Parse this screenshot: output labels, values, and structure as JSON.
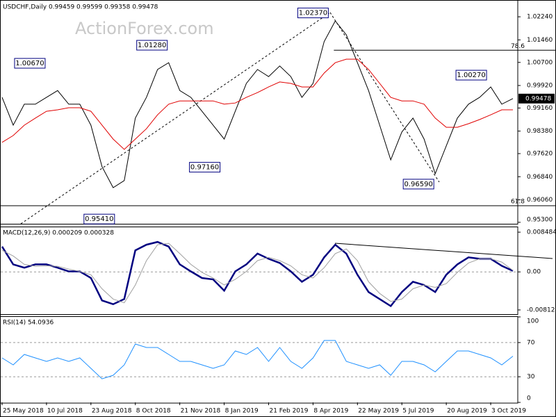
{
  "chart_data": [
    {
      "type": "price",
      "title": "USDCHF,Daily  0.99459 0.99599 0.99358 0.99478",
      "watermark": "ActionForex.com",
      "x": [
        0,
        8,
        16,
        24,
        32,
        40,
        48,
        56,
        64,
        72,
        80,
        88,
        96,
        104,
        112,
        120,
        128,
        136,
        144,
        152,
        160,
        168,
        176,
        184,
        192,
        200,
        208,
        216,
        224,
        232,
        240,
        248,
        256,
        264,
        272,
        280,
        288,
        296,
        304,
        312,
        320,
        328,
        336,
        344,
        352,
        360,
        368
      ],
      "xlim": [
        -1,
        371.5
      ],
      "ylim": [
        0.9525,
        1.0276
      ],
      "yticks": [
        {
          "value": 1.0224,
          "label": "1.02240"
        },
        {
          "value": 1.0146,
          "label": "1.01460"
        },
        {
          "value": 1.007,
          "label": "1.00700"
        },
        {
          "value": 0.9992,
          "label": "0.99920"
        },
        {
          "value": 0.9916,
          "label": "0.99160"
        },
        {
          "value": 0.9838,
          "label": "0.98380"
        },
        {
          "value": 0.9762,
          "label": "0.97620"
        },
        {
          "value": 0.9684,
          "label": "0.96840"
        },
        {
          "value": 0.9606,
          "label": "0.96060"
        },
        {
          "value": 0.953,
          "label": "0.95300"
        }
      ],
      "series": [
        {
          "name": "Close",
          "color": "#000000",
          "values": [
            0.9952,
            0.9858,
            0.9929,
            0.9929,
            0.9952,
            0.9975,
            0.9929,
            0.9929,
            0.9858,
            0.9718,
            0.9647,
            0.9671,
            0.9882,
            0.9952,
            1.0046,
            1.0069,
            0.9975,
            0.9952,
            0.9905,
            0.9858,
            0.9811,
            0.9905,
            0.9999,
            1.0046,
            1.0022,
            1.0058,
            1.0022,
            0.9952,
            0.9999,
            1.014,
            1.021,
            1.0163,
            1.0069,
            0.9975,
            0.9858,
            0.9741,
            0.9835,
            0.9882,
            0.9811,
            0.9694,
            0.9788,
            0.9882,
            0.9929,
            0.9952,
            0.9987,
            0.9929,
            0.99478
          ]
        },
        {
          "name": "MA",
          "color": "#e00000",
          "values": [
            0.98,
            0.9823,
            0.9858,
            0.9882,
            0.9905,
            0.991,
            0.9917,
            0.9917,
            0.9905,
            0.9858,
            0.9811,
            0.9776,
            0.9811,
            0.9846,
            0.9893,
            0.9929,
            0.994,
            0.994,
            0.994,
            0.994,
            0.9929,
            0.9933,
            0.9952,
            0.9968,
            0.9987,
            1.0004,
            0.9999,
            0.9987,
            0.9987,
            1.0034,
            1.0069,
            1.0081,
            1.0081,
            1.0046,
            0.9999,
            0.9952,
            0.994,
            0.994,
            0.9929,
            0.9882,
            0.9851,
            0.9851,
            0.9863,
            0.9877,
            0.9893,
            0.991,
            0.991
          ]
        }
      ],
      "annotations": [
        {
          "label": "1.00670",
          "value": 1.0067,
          "x": 20
        },
        {
          "label": "1.01280",
          "value": 1.0128,
          "x": 108
        },
        {
          "label": "0.95410",
          "value": 0.9541,
          "x": 70
        },
        {
          "label": "0.97160",
          "value": 0.9716,
          "x": 146
        },
        {
          "label": "1.02370",
          "value": 1.0237,
          "x": 224
        },
        {
          "label": "0.96590",
          "value": 0.9659,
          "x": 300
        },
        {
          "label": "1.00270",
          "value": 1.0027,
          "x": 338
        }
      ],
      "levels": [
        {
          "label": "78.6",
          "value": 1.0111,
          "from": 239
        },
        {
          "label": "61.8",
          "value": 0.9586,
          "from": -1
        }
      ],
      "last": {
        "value": 0.99478,
        "label": "0.99478"
      }
    },
    {
      "type": "macd",
      "title": "MACD(12,26,9) 0.000209 0.000328",
      "x": [
        0,
        8,
        16,
        24,
        32,
        40,
        48,
        56,
        64,
        72,
        80,
        88,
        96,
        104,
        112,
        120,
        128,
        136,
        144,
        152,
        160,
        168,
        176,
        184,
        192,
        200,
        208,
        216,
        224,
        232,
        240,
        248,
        256,
        264,
        272,
        280,
        288,
        296,
        304,
        312,
        320,
        328,
        336,
        344,
        352,
        360,
        368
      ],
      "xlim": [
        -1,
        371.5
      ],
      "ylim": [
        -0.009021,
        0.009531
      ],
      "yticks": [
        0.008484,
        {
          "value": 0,
          "label": "0.00"
        },
        -0.008123
      ],
      "reference_lines": [
        0
      ],
      "series": [
        {
          "name": "MACD",
          "color": "#000080",
          "values": [
            0.0054,
            0.0016,
            0.0009,
            0.0016,
            0.0016,
            0.0009,
            0.0001,
            0.0001,
            -0.0013,
            -0.0061,
            -0.0069,
            -0.0058,
            0.0046,
            0.0058,
            0.0064,
            0.0054,
            0.0016,
            0.0001,
            -0.0013,
            -0.0016,
            -0.004,
            0.0001,
            0.0016,
            0.0039,
            0.0028,
            0.0019,
            0.0001,
            -0.0021,
            -0.0006,
            0.0031,
            0.0058,
            0.0039,
            -0.0006,
            -0.0043,
            -0.0058,
            -0.0073,
            -0.0043,
            -0.0021,
            -0.0028,
            -0.0043,
            -0.0006,
            0.0016,
            0.0031,
            0.0028,
            0.0028,
            0.0013,
            0.000209
          ]
        },
        {
          "name": "Signal",
          "color": "#a0a0a0",
          "values": [
            0.0046,
            0.0034,
            0.0016,
            0.0012,
            0.0013,
            0.0012,
            0.0006,
            0.0001,
            -0.0006,
            -0.0036,
            -0.0058,
            -0.0066,
            -0.0028,
            0.0024,
            0.0058,
            0.0061,
            0.0039,
            0.0016,
            -0.0001,
            -0.0013,
            -0.0028,
            -0.0016,
            0.0001,
            0.0024,
            0.0031,
            0.0024,
            0.0013,
            -0.0006,
            -0.0013,
            0.0009,
            0.0039,
            0.0049,
            0.0024,
            -0.0021,
            -0.0046,
            -0.0063,
            -0.0058,
            -0.0036,
            -0.0028,
            -0.0033,
            -0.0025,
            -0.0001,
            0.0019,
            0.0028,
            0.0028,
            0.0021,
            0.000328
          ]
        }
      ]
    },
    {
      "type": "rsi",
      "title": "RSI(14) 54.0936",
      "x": [
        0,
        8,
        16,
        24,
        32,
        40,
        48,
        56,
        64,
        72,
        80,
        88,
        96,
        104,
        112,
        120,
        128,
        136,
        144,
        152,
        160,
        168,
        176,
        184,
        192,
        200,
        208,
        216,
        224,
        232,
        240,
        248,
        256,
        264,
        272,
        280,
        288,
        296,
        304,
        312,
        320,
        328,
        336,
        344,
        352,
        360,
        368
      ],
      "xlim": [
        -1,
        371.5
      ],
      "ylim": [
        0,
        100
      ],
      "yticks": [
        100,
        70,
        30,
        0
      ],
      "reference_lines": [
        70,
        30
      ],
      "xticks": [
        {
          "value": 0,
          "label": "25 May 2018"
        },
        {
          "value": 32,
          "label": "10 Jul 2018"
        },
        {
          "value": 64,
          "label": "23 Aug 2018"
        },
        {
          "value": 96,
          "label": "8 Oct 2018"
        },
        {
          "value": 128,
          "label": "21 Nov 2018"
        },
        {
          "value": 160,
          "label": "8 Jan 2019"
        },
        {
          "value": 192,
          "label": "21 Feb 2019"
        },
        {
          "value": 224,
          "label": "8 Apr 2019"
        },
        {
          "value": 256,
          "label": "22 May 2019"
        },
        {
          "value": 288,
          "label": "5 Jul 2019"
        },
        {
          "value": 320,
          "label": "20 Aug 2019"
        },
        {
          "value": 352,
          "label": "3 Oct 2019"
        }
      ],
      "series": [
        {
          "name": "RSI",
          "color": "#1e90ff",
          "values": [
            52.0,
            43.9,
            56.1,
            52.0,
            48.0,
            52.0,
            48.0,
            52.0,
            39.8,
            27.6,
            31.7,
            43.9,
            68.3,
            64.2,
            64.2,
            56.1,
            48.0,
            48.0,
            43.9,
            39.8,
            43.9,
            60.2,
            56.1,
            64.2,
            48.0,
            64.2,
            48.0,
            39.8,
            52.0,
            72.4,
            72.4,
            48.0,
            43.9,
            39.8,
            43.9,
            31.7,
            48.0,
            48.0,
            43.9,
            35.8,
            48.0,
            60.2,
            60.2,
            56.1,
            52.0,
            43.9,
            54.0936
          ]
        }
      ]
    }
  ]
}
